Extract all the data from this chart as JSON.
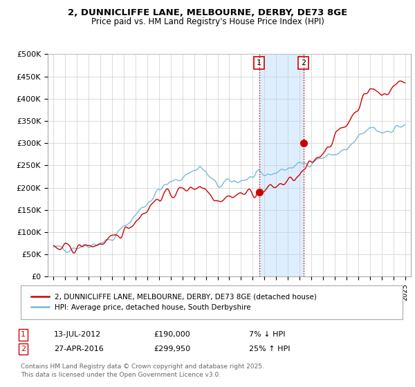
{
  "title_line1": "2, DUNNICLIFFE LANE, MELBOURNE, DERBY, DE73 8GE",
  "title_line2": "Price paid vs. HM Land Registry's House Price Index (HPI)",
  "ylabel_ticks": [
    "£0",
    "£50K",
    "£100K",
    "£150K",
    "£200K",
    "£250K",
    "£300K",
    "£350K",
    "£400K",
    "£450K",
    "£500K"
  ],
  "ytick_values": [
    0,
    50000,
    100000,
    150000,
    200000,
    250000,
    300000,
    350000,
    400000,
    450000,
    500000
  ],
  "ylim": [
    0,
    500000
  ],
  "xlim_start": 1994.5,
  "xlim_end": 2025.5,
  "hpi_color": "#7ab8d9",
  "price_color": "#cc0000",
  "marker1_date": 2012.54,
  "marker1_price": 190000,
  "marker2_date": 2016.33,
  "marker2_price": 299950,
  "vline_color": "#cc0000",
  "shade_color": "#ddeeff",
  "legend_label1": "2, DUNNICLIFFE LANE, MELBOURNE, DERBY, DE73 8GE (detached house)",
  "legend_label2": "HPI: Average price, detached house, South Derbyshire",
  "footnote3": "Contains HM Land Registry data © Crown copyright and database right 2025.",
  "footnote4": "This data is licensed under the Open Government Licence v3.0.",
  "background_color": "#ffffff",
  "grid_color": "#cccccc"
}
